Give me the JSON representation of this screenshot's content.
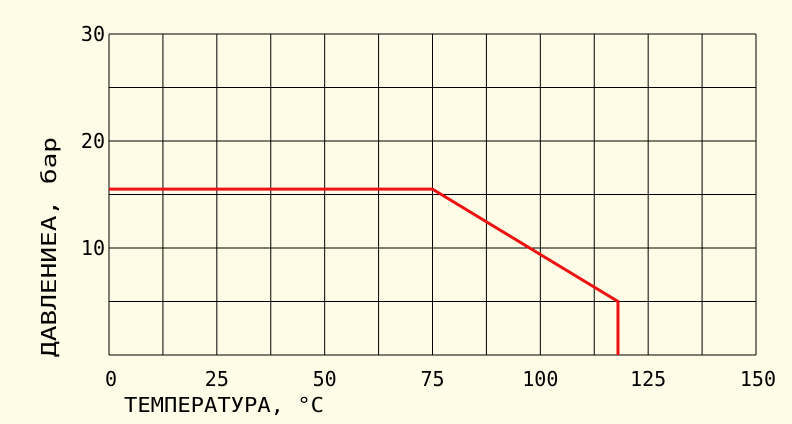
{
  "colors": {
    "background": "#fefce6",
    "grid": "#000000",
    "series": "#ee1111",
    "text": "#000000"
  },
  "chart_data": {
    "type": "line",
    "title": "",
    "xlabel": "ТЕМПЕРАТУРА, °С",
    "ylabel": "ДАВЛЕНИЕА, бар",
    "xlim": [
      0,
      150
    ],
    "ylim": [
      0,
      30
    ],
    "x_ticks": [
      0,
      25,
      50,
      75,
      100,
      125,
      150
    ],
    "y_ticks": [
      10,
      20,
      30
    ],
    "x_grid_step": 12.5,
    "y_grid_step": 5,
    "grid": true,
    "legend": "none",
    "series": [
      {
        "x": [
          0,
          75,
          118,
          118
        ],
        "y": [
          15.5,
          15.5,
          5,
          0
        ]
      }
    ]
  }
}
